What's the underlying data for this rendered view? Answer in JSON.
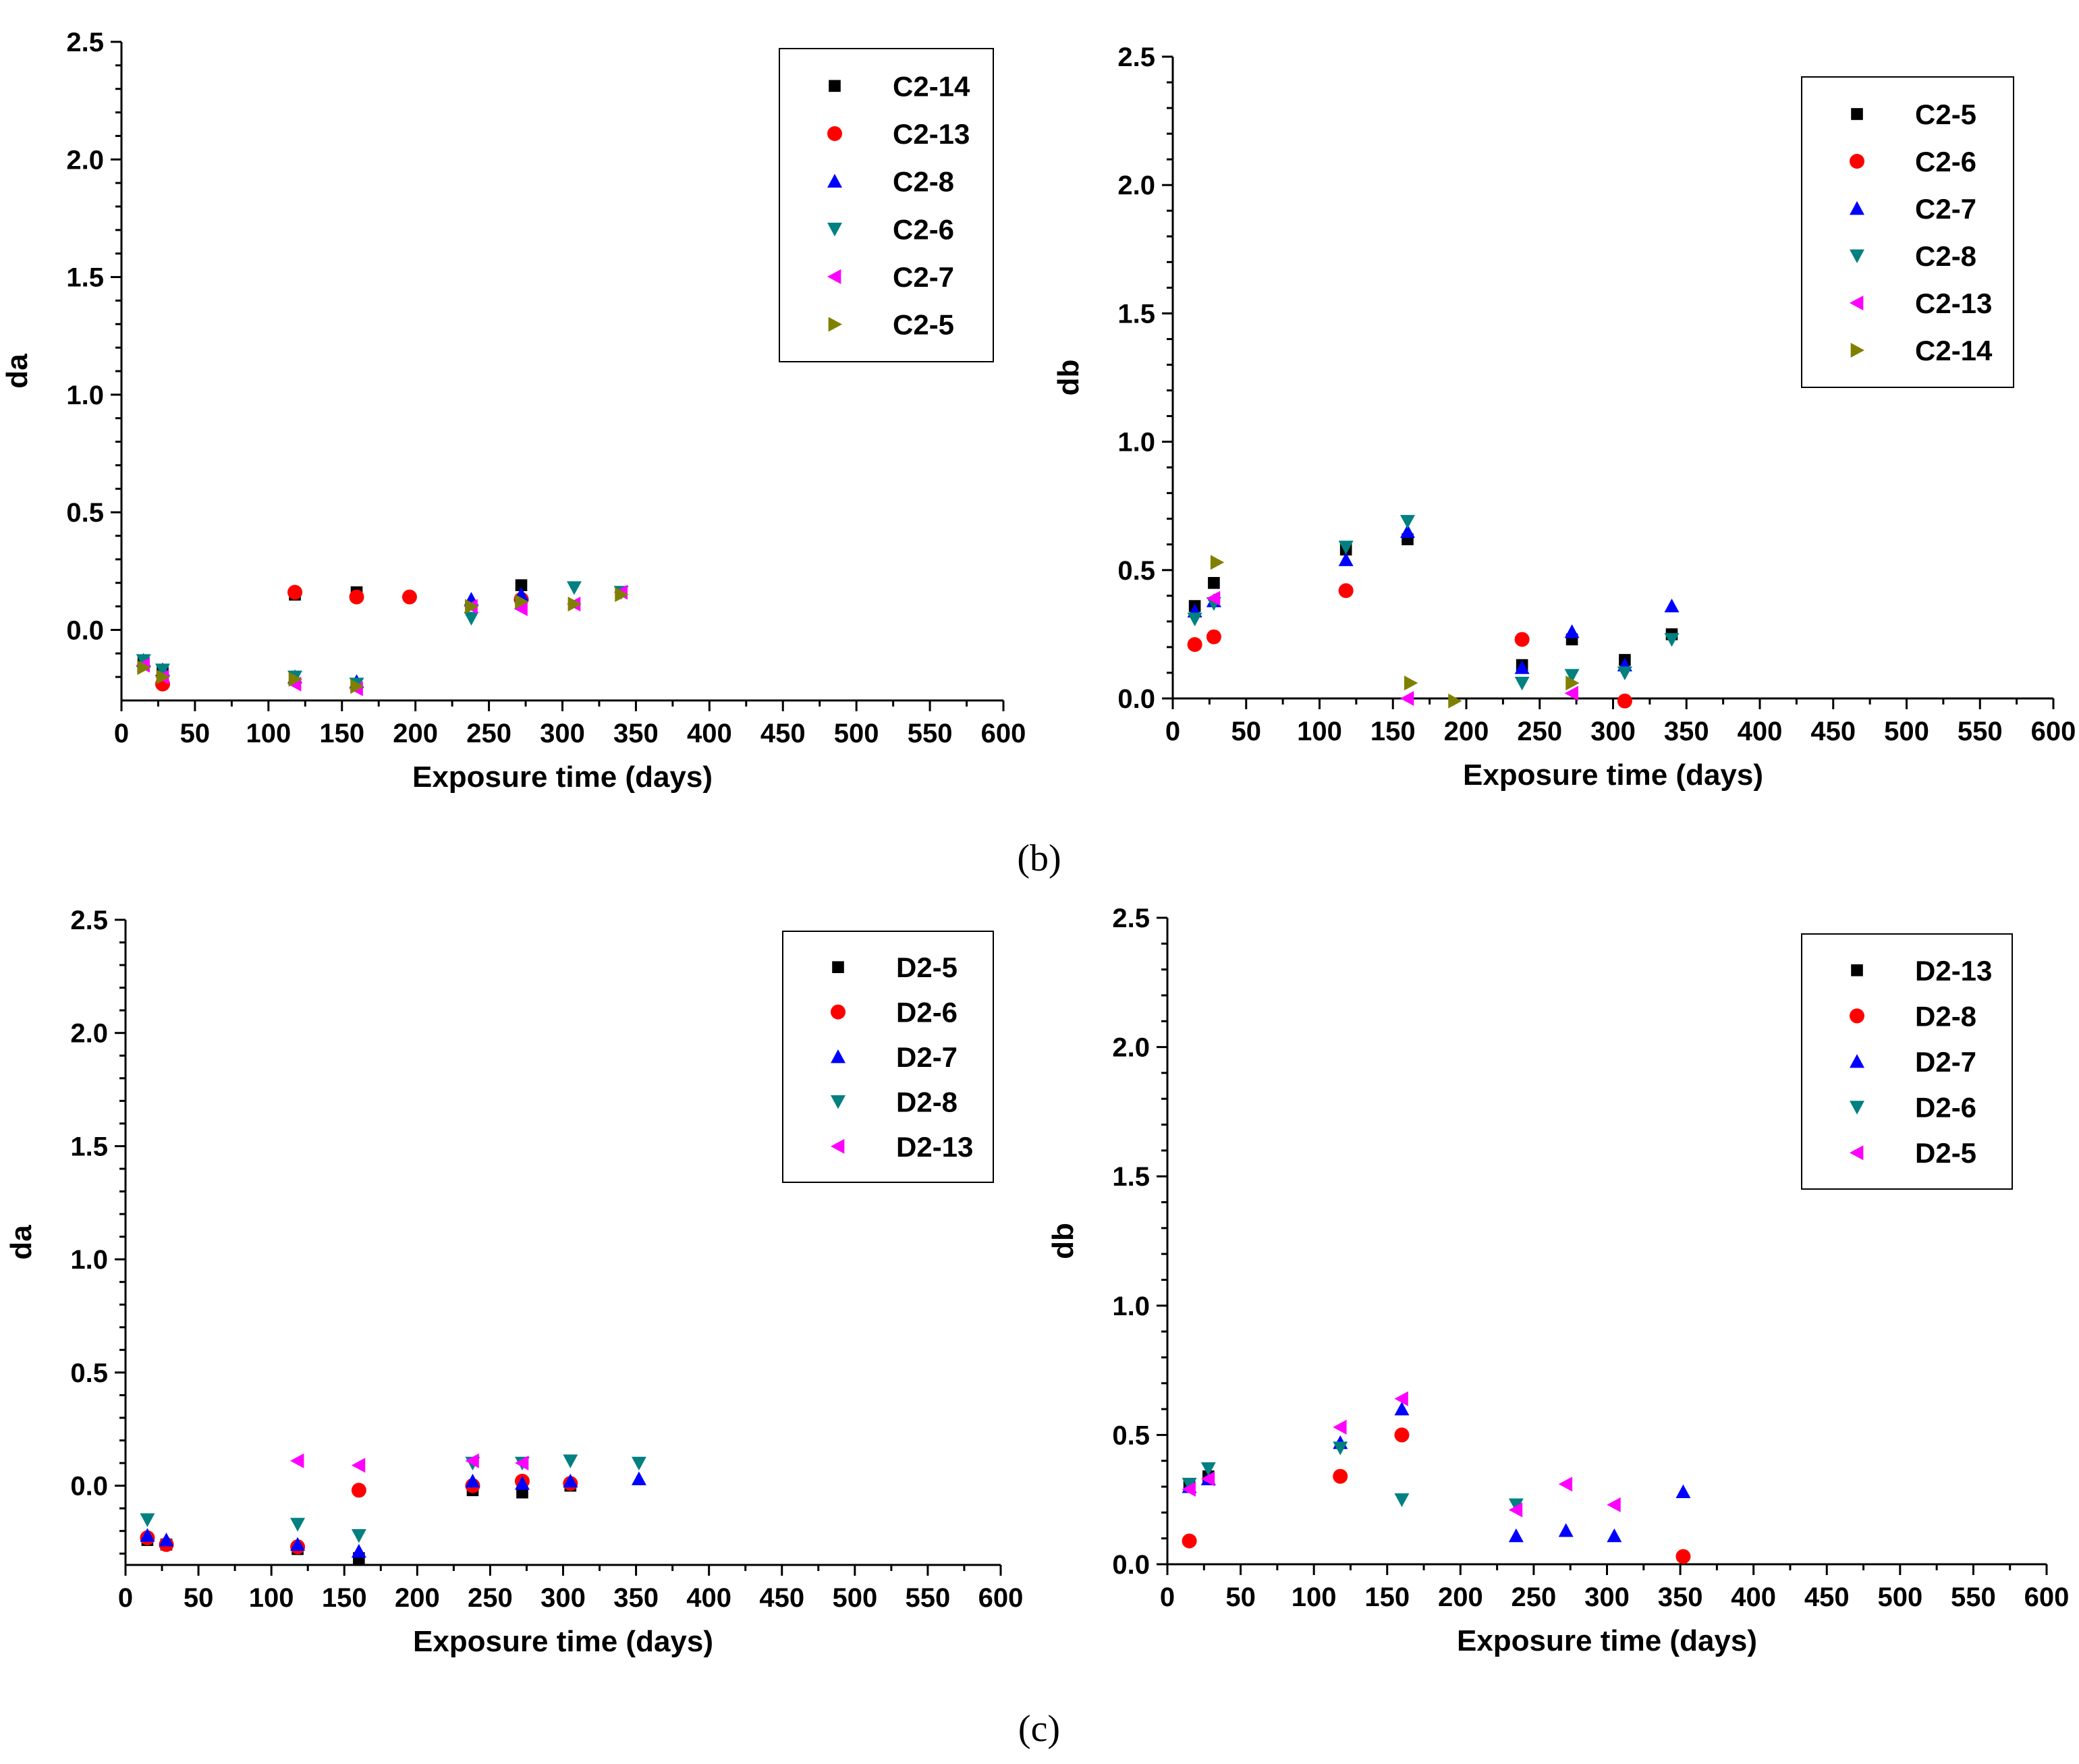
{
  "panel_labels": {
    "b": "(b)",
    "c": "(c)"
  },
  "chart_data": [
    {
      "id": "b-left",
      "type": "scatter",
      "xlabel": "Exposure time (days)",
      "ylabel": "da",
      "xlim": [
        0,
        600
      ],
      "ylim": [
        -0.3,
        2.5
      ],
      "xticks": [
        0,
        50,
        100,
        150,
        200,
        250,
        300,
        350,
        400,
        450,
        500,
        550,
        600
      ],
      "yticks": [
        0.0,
        0.5,
        1.0,
        1.5,
        2.0,
        2.5
      ],
      "ytick_labels": [
        "0.0",
        "0.5",
        "1.0",
        "1.5",
        "2.0",
        "2.5"
      ],
      "legend_position": "top-right",
      "series": [
        {
          "name": "C2-14",
          "marker": "square",
          "color": "#000000",
          "points": [
            [
              15,
              -0.14
            ],
            [
              28,
              -0.18
            ],
            [
              118,
              0.15
            ],
            [
              160,
              0.16
            ],
            [
              272,
              0.19
            ]
          ]
        },
        {
          "name": "C2-13",
          "marker": "circle",
          "color": "#ff0000",
          "points": [
            [
              28,
              -0.23
            ],
            [
              118,
              0.16
            ],
            [
              160,
              0.14
            ],
            [
              196,
              0.14
            ],
            [
              272,
              0.13
            ]
          ]
        },
        {
          "name": "C2-8",
          "marker": "triangle-up",
          "color": "#0000ff",
          "points": [
            [
              15,
              -0.13
            ],
            [
              28,
              -0.17
            ],
            [
              118,
              -0.2
            ],
            [
              160,
              -0.22
            ],
            [
              238,
              0.13
            ],
            [
              272,
              0.15
            ]
          ]
        },
        {
          "name": "C2-6",
          "marker": "triangle-down",
          "color": "#008080",
          "points": [
            [
              15,
              -0.13
            ],
            [
              28,
              -0.17
            ],
            [
              118,
              -0.2
            ],
            [
              160,
              -0.23
            ],
            [
              238,
              0.05
            ],
            [
              308,
              0.18
            ],
            [
              340,
              0.16
            ]
          ]
        },
        {
          "name": "C2-7",
          "marker": "triangle-left",
          "color": "#ff00ff",
          "points": [
            [
              15,
              -0.15
            ],
            [
              28,
              -0.2
            ],
            [
              118,
              -0.23
            ],
            [
              160,
              -0.25
            ],
            [
              238,
              0.1
            ],
            [
              272,
              0.09
            ],
            [
              308,
              0.11
            ],
            [
              340,
              0.16
            ]
          ]
        },
        {
          "name": "C2-5",
          "marker": "triangle-right",
          "color": "#808000",
          "points": [
            [
              15,
              -0.16
            ],
            [
              28,
              -0.2
            ],
            [
              118,
              -0.21
            ],
            [
              160,
              -0.24
            ],
            [
              238,
              0.1
            ],
            [
              272,
              0.12
            ],
            [
              308,
              0.11
            ],
            [
              340,
              0.15
            ]
          ]
        }
      ]
    },
    {
      "id": "b-right",
      "type": "scatter",
      "xlabel": "Exposure time (days)",
      "ylabel": "db",
      "xlim": [
        0,
        600
      ],
      "ylim": [
        0,
        2.5
      ],
      "xticks": [
        0,
        50,
        100,
        150,
        200,
        250,
        300,
        350,
        400,
        450,
        500,
        550,
        600
      ],
      "yticks": [
        0.0,
        0.5,
        1.0,
        1.5,
        2.0,
        2.5
      ],
      "ytick_labels": [
        "0.0",
        "0.5",
        "1.0",
        "1.5",
        "2.0",
        "2.5"
      ],
      "legend_position": "top-right",
      "series": [
        {
          "name": "C2-5",
          "marker": "square",
          "color": "#000000",
          "points": [
            [
              15,
              0.36
            ],
            [
              28,
              0.45
            ],
            [
              118,
              0.58
            ],
            [
              160,
              0.62
            ],
            [
              238,
              0.13
            ],
            [
              272,
              0.23
            ],
            [
              308,
              0.15
            ],
            [
              340,
              0.25
            ]
          ]
        },
        {
          "name": "C2-6",
          "marker": "circle",
          "color": "#ff0000",
          "points": [
            [
              15,
              0.21
            ],
            [
              28,
              0.24
            ],
            [
              118,
              0.42
            ],
            [
              238,
              0.23
            ],
            [
              308,
              -0.01
            ]
          ]
        },
        {
          "name": "C2-7",
          "marker": "triangle-up",
          "color": "#0000ff",
          "points": [
            [
              15,
              0.34
            ],
            [
              28,
              0.38
            ],
            [
              118,
              0.54
            ],
            [
              160,
              0.65
            ],
            [
              238,
              0.12
            ],
            [
              272,
              0.26
            ],
            [
              308,
              0.13
            ],
            [
              340,
              0.36
            ]
          ]
        },
        {
          "name": "C2-8",
          "marker": "triangle-down",
          "color": "#008080",
          "points": [
            [
              15,
              0.31
            ],
            [
              28,
              0.37
            ],
            [
              118,
              0.59
            ],
            [
              160,
              0.69
            ],
            [
              238,
              0.06
            ],
            [
              272,
              0.09
            ],
            [
              308,
              0.1
            ],
            [
              340,
              0.23
            ]
          ]
        },
        {
          "name": "C2-13",
          "marker": "triangle-left",
          "color": "#ff00ff",
          "points": [
            [
              28,
              0.39
            ],
            [
              160,
              0.0
            ],
            [
              272,
              0.02
            ]
          ]
        },
        {
          "name": "C2-14",
          "marker": "triangle-right",
          "color": "#808000",
          "points": [
            [
              30,
              0.53
            ],
            [
              162,
              0.06
            ],
            [
              192,
              -0.01
            ],
            [
              272,
              0.06
            ]
          ]
        }
      ]
    },
    {
      "id": "c-left",
      "type": "scatter",
      "xlabel": "Exposure time (days)",
      "ylabel": "da",
      "xlim": [
        0,
        600
      ],
      "ylim": [
        -0.35,
        2.5
      ],
      "xticks": [
        0,
        50,
        100,
        150,
        200,
        250,
        300,
        350,
        400,
        450,
        500,
        550,
        600
      ],
      "yticks": [
        0.0,
        0.5,
        1.0,
        1.5,
        2.0,
        2.5
      ],
      "ytick_labels": [
        "0.0",
        "0.5",
        "1.0",
        "1.5",
        "2.0",
        "2.5"
      ],
      "legend_position": "top-right",
      "series": [
        {
          "name": "D2-5",
          "marker": "square",
          "color": "#000000",
          "points": [
            [
              15,
              -0.24
            ],
            [
              28,
              -0.26
            ],
            [
              118,
              -0.28
            ],
            [
              160,
              -0.32
            ],
            [
              238,
              -0.02
            ],
            [
              272,
              -0.03
            ],
            [
              305,
              0.0
            ]
          ]
        },
        {
          "name": "D2-6",
          "marker": "circle",
          "color": "#ff0000",
          "points": [
            [
              15,
              -0.23
            ],
            [
              28,
              -0.26
            ],
            [
              118,
              -0.27
            ],
            [
              160,
              -0.02
            ],
            [
              238,
              0.0
            ],
            [
              272,
              0.02
            ],
            [
              305,
              0.01
            ]
          ]
        },
        {
          "name": "D2-7",
          "marker": "triangle-up",
          "color": "#0000ff",
          "points": [
            [
              15,
              -0.22
            ],
            [
              28,
              -0.24
            ],
            [
              118,
              -0.26
            ],
            [
              160,
              -0.29
            ],
            [
              238,
              0.02
            ],
            [
              272,
              0.01
            ],
            [
              305,
              0.02
            ],
            [
              352,
              0.03
            ]
          ]
        },
        {
          "name": "D2-8",
          "marker": "triangle-down",
          "color": "#008080",
          "points": [
            [
              15,
              -0.15
            ],
            [
              118,
              -0.17
            ],
            [
              160,
              -0.22
            ],
            [
              238,
              0.1
            ],
            [
              272,
              0.1
            ],
            [
              305,
              0.11
            ],
            [
              352,
              0.1
            ]
          ]
        },
        {
          "name": "D2-13",
          "marker": "triangle-left",
          "color": "#ff00ff",
          "points": [
            [
              118,
              0.11
            ],
            [
              160,
              0.09
            ],
            [
              238,
              0.11
            ],
            [
              272,
              0.1
            ]
          ]
        }
      ]
    },
    {
      "id": "c-right",
      "type": "scatter",
      "xlabel": "Exposure time (days)",
      "ylabel": "db",
      "xlim": [
        0,
        600
      ],
      "ylim": [
        0,
        2.5
      ],
      "xticks": [
        0,
        50,
        100,
        150,
        200,
        250,
        300,
        350,
        400,
        450,
        500,
        550,
        600
      ],
      "yticks": [
        0.0,
        0.5,
        1.0,
        1.5,
        2.0,
        2.5
      ],
      "ytick_labels": [
        "0.0",
        "0.5",
        "1.0",
        "1.5",
        "2.0",
        "2.5"
      ],
      "legend_position": "top-right",
      "series": [
        {
          "name": "D2-13",
          "marker": "square",
          "color": "#000000",
          "points": [
            [
              15,
              0.3
            ],
            [
              28,
              0.34
            ]
          ]
        },
        {
          "name": "D2-8",
          "marker": "circle",
          "color": "#ff0000",
          "points": [
            [
              15,
              0.09
            ],
            [
              118,
              0.34
            ],
            [
              160,
              0.5
            ],
            [
              352,
              0.03
            ]
          ]
        },
        {
          "name": "D2-7",
          "marker": "triangle-up",
          "color": "#0000ff",
          "points": [
            [
              15,
              0.3
            ],
            [
              28,
              0.33
            ],
            [
              118,
              0.47
            ],
            [
              160,
              0.6
            ],
            [
              238,
              0.11
            ],
            [
              272,
              0.13
            ],
            [
              305,
              0.11
            ],
            [
              352,
              0.28
            ]
          ]
        },
        {
          "name": "D2-6",
          "marker": "triangle-down",
          "color": "#008080",
          "points": [
            [
              15,
              0.31
            ],
            [
              28,
              0.37
            ],
            [
              118,
              0.45
            ],
            [
              160,
              0.25
            ],
            [
              238,
              0.23
            ]
          ]
        },
        {
          "name": "D2-5",
          "marker": "triangle-left",
          "color": "#ff00ff",
          "points": [
            [
              15,
              0.29
            ],
            [
              28,
              0.33
            ],
            [
              118,
              0.53
            ],
            [
              160,
              0.64
            ],
            [
              238,
              0.21
            ],
            [
              272,
              0.31
            ],
            [
              305,
              0.23
            ]
          ]
        }
      ]
    }
  ]
}
